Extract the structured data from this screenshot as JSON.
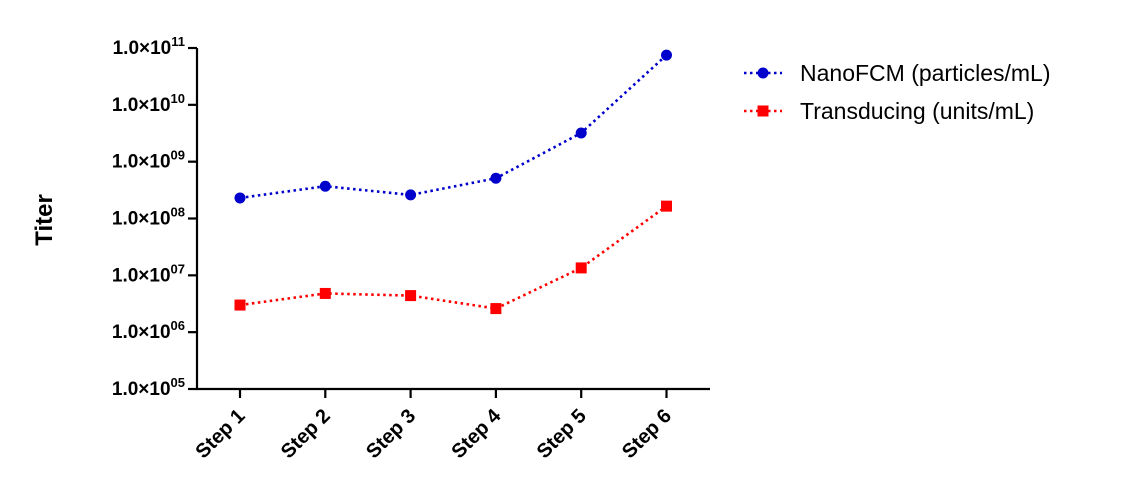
{
  "chart_data": {
    "type": "line",
    "categories": [
      "Step 1",
      "Step 2",
      "Step 3",
      "Step 4",
      "Step 5",
      "Step 6"
    ],
    "ylabel": "Titer",
    "xlabel": "",
    "yscale": "log",
    "ylim": [
      100000,
      100000000000
    ],
    "yticks": [
      {
        "mantissa": "1.0×10",
        "exp": "05"
      },
      {
        "mantissa": "1.0×10",
        "exp": "06"
      },
      {
        "mantissa": "1.0×10",
        "exp": "07"
      },
      {
        "mantissa": "1.0×10",
        "exp": "08"
      },
      {
        "mantissa": "1.0×10",
        "exp": "09"
      },
      {
        "mantissa": "1.0×10",
        "exp": "10"
      },
      {
        "mantissa": "1.0×10",
        "exp": "11"
      }
    ],
    "series": [
      {
        "name": "NanoFCM (particles/mL)",
        "color": "#0000CC",
        "marker": "circle",
        "values": [
          230000000,
          370000000,
          260000000,
          510000000,
          3200000000,
          75000000000
        ]
      },
      {
        "name": "Transducing (units/mL)",
        "color": "#FF0000",
        "marker": "square",
        "values": [
          3000000,
          4800000,
          4400000,
          2600000,
          13500000,
          165000000
        ]
      }
    ],
    "grid": false,
    "legend_position": "top-right"
  }
}
